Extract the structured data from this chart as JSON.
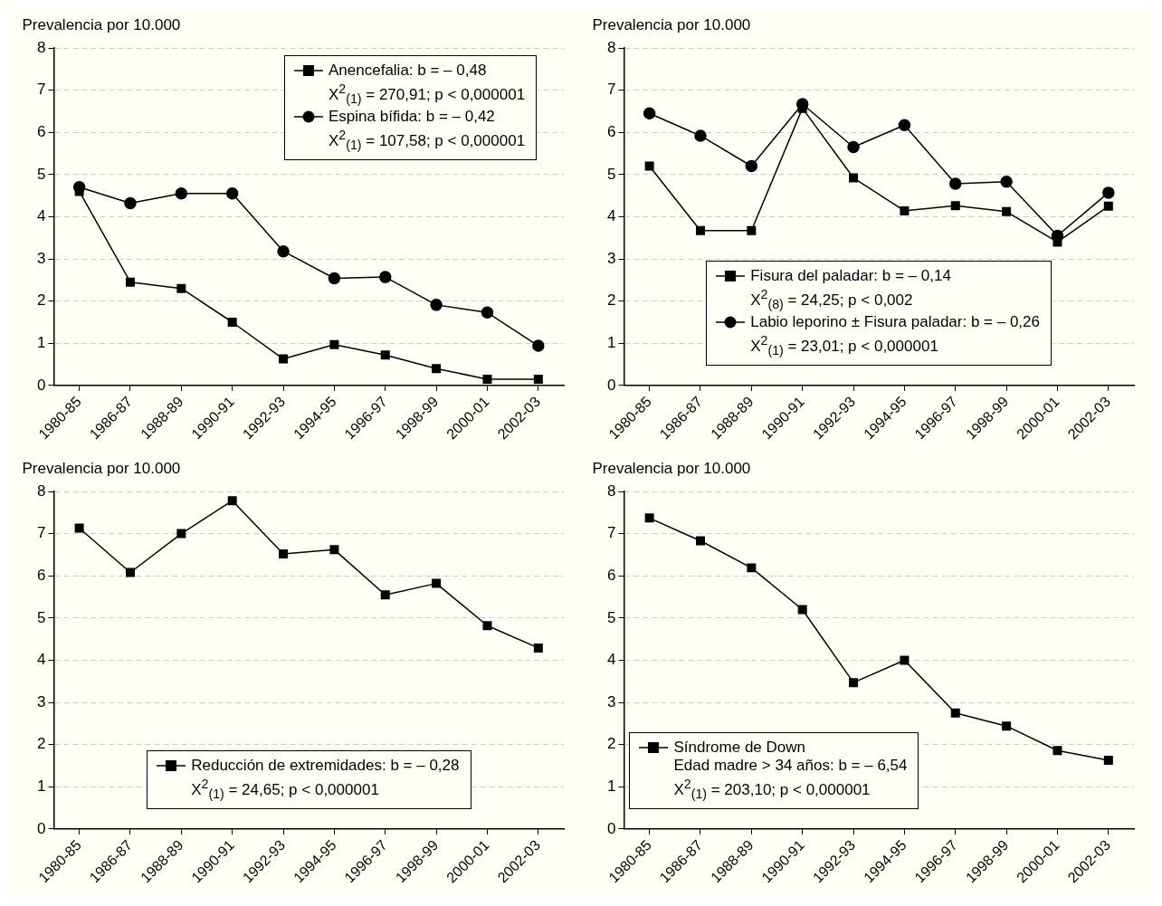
{
  "chart_data": [
    {
      "type": "line",
      "ylabel": "Prevalencia por 10.000",
      "categories": [
        "1980-85",
        "1986-87",
        "1988-89",
        "1990-91",
        "1992-93",
        "1994-95",
        "1996-97",
        "1998-99",
        "2000-01",
        "2002-03"
      ],
      "ylim": [
        0,
        8
      ],
      "yticks": [
        0,
        1,
        2,
        3,
        4,
        5,
        6,
        7,
        8
      ],
      "grid": "y",
      "legend": "top right",
      "line_style": "solid",
      "series": [
        {
          "name": "Anencefalia: b = – 0,48\nX$^{2}$$_{(1)}$ = 270,91; p < 0,000001",
          "color": "#000000",
          "marker": "square",
          "values": [
            4.6,
            2.45,
            2.3,
            1.5,
            0.63,
            0.97,
            0.72,
            0.4,
            0.15,
            0.15
          ]
        },
        {
          "name": "Espina bífida: b = – 0,42\nX$^{2}$$_{(1)}$ = 107,58; p < 0,000001",
          "color": "#000000",
          "marker": "circle",
          "values": [
            4.7,
            4.32,
            4.55,
            4.55,
            3.18,
            2.54,
            2.57,
            1.91,
            1.73,
            0.94
          ]
        }
      ]
    },
    {
      "type": "line",
      "ylabel": "Prevalencia por 10.000",
      "categories": [
        "1980-85",
        "1986-87",
        "1988-89",
        "1990-91",
        "1992-93",
        "1994-95",
        "1996-97",
        "1998-99",
        "2000-01",
        "2002-03"
      ],
      "ylim": [
        0,
        8
      ],
      "yticks": [
        0,
        1,
        2,
        3,
        4,
        5,
        6,
        7,
        8
      ],
      "grid": "y",
      "legend": "bottom",
      "line_style": "solid",
      "series": [
        {
          "name": "Fisura del paladar: b = – 0,14\nX$^{2}$$_{(8)}$ = 24,25; p < 0,002",
          "color": "#000000",
          "marker": "square",
          "values": [
            5.2,
            3.67,
            3.67,
            6.57,
            4.92,
            4.14,
            4.26,
            4.12,
            3.4,
            4.25
          ]
        },
        {
          "name": "Labio leporino ± Fisura paladar: b = – 0,26\nX$^{2}$$_{(1)}$ = 23,01; p < 0,000001",
          "color": "#000000",
          "marker": "circle",
          "values": [
            6.45,
            5.92,
            5.2,
            6.67,
            5.65,
            6.17,
            4.78,
            4.83,
            3.55,
            4.57
          ]
        }
      ]
    },
    {
      "type": "line",
      "ylabel": "Prevalencia por 10.000",
      "categories": [
        "1980-85",
        "1986-87",
        "1988-89",
        "1990-91",
        "1992-93",
        "1994-95",
        "1996-97",
        "1998-99",
        "2000-01",
        "2002-03"
      ],
      "ylim": [
        0,
        8
      ],
      "yticks": [
        0,
        1,
        2,
        3,
        4,
        5,
        6,
        7,
        8
      ],
      "grid": "y",
      "legend": "bottom",
      "line_style": "solid",
      "series": [
        {
          "name": "Reducción de extremidades: b = – 0,28\nX$^{2}$$_{(1)}$ = 24,65; p < 0,000001",
          "color": "#000000",
          "marker": "square",
          "values": [
            7.13,
            6.08,
            7.0,
            7.78,
            6.52,
            6.62,
            5.55,
            5.82,
            4.82,
            4.29
          ]
        }
      ]
    },
    {
      "type": "line",
      "ylabel": "Prevalencia por 10.000",
      "categories": [
        "1980-85",
        "1986-87",
        "1988-89",
        "1990-91",
        "1992-93",
        "1994-95",
        "1996-97",
        "1998-99",
        "2000-01",
        "2002-03"
      ],
      "ylim": [
        0,
        8
      ],
      "yticks": [
        0,
        1,
        2,
        3,
        4,
        5,
        6,
        7,
        8
      ],
      "grid": "y",
      "legend": "bottom left",
      "line_style": "solid",
      "series": [
        {
          "name": "Síndrome de Down\nEdad madre > 34 años: b = – 6,54\nX$^{2}$$_{(1)}$ = 203,10; p < 0,000001",
          "color": "#000000",
          "marker": "square",
          "values": [
            7.37,
            6.83,
            6.19,
            5.2,
            3.47,
            4.0,
            2.75,
            2.44,
            1.86,
            1.63
          ]
        }
      ]
    }
  ]
}
